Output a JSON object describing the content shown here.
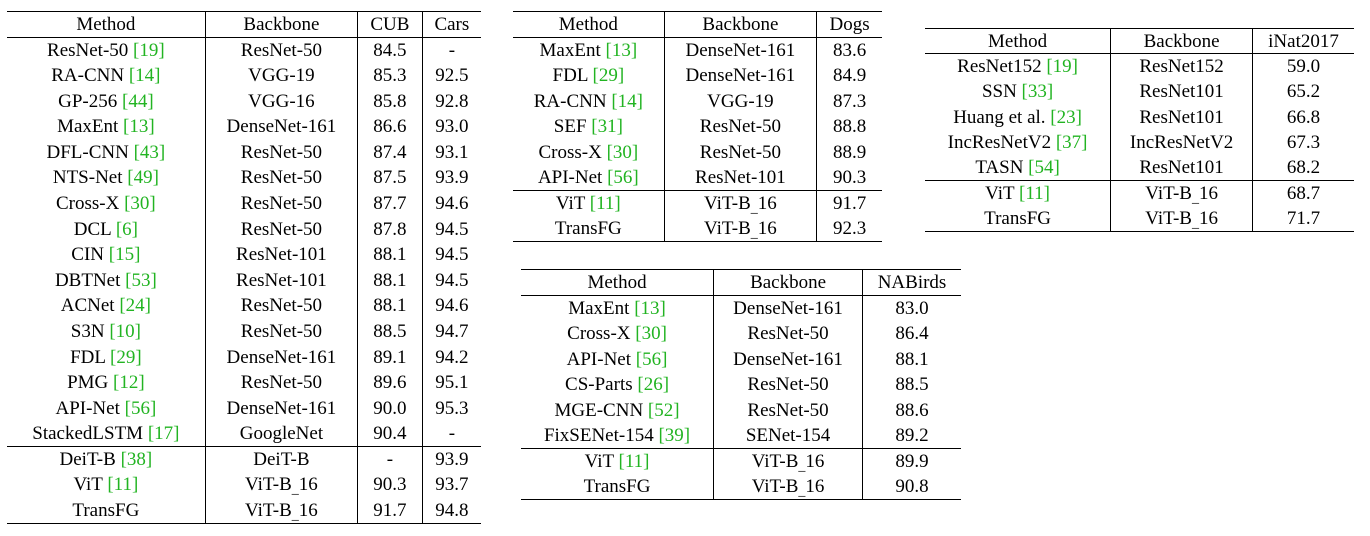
{
  "tables": [
    {
      "id": "cub",
      "headers": [
        "Method",
        "Backbone",
        "CUB",
        "Cars"
      ],
      "rows": [
        {
          "method": "ResNet-50",
          "ref": "19",
          "backbone": "ResNet-50",
          "vals": [
            "84.5",
            "-"
          ],
          "bold": [
            false,
            false
          ]
        },
        {
          "method": "RA-CNN",
          "ref": "14",
          "backbone": "VGG-19",
          "vals": [
            "85.3",
            "92.5"
          ],
          "bold": [
            false,
            false
          ]
        },
        {
          "method": "GP-256",
          "ref": "44",
          "backbone": "VGG-16",
          "vals": [
            "85.8",
            "92.8"
          ],
          "bold": [
            false,
            false
          ]
        },
        {
          "method": "MaxEnt",
          "ref": "13",
          "backbone": "DenseNet-161",
          "vals": [
            "86.6",
            "93.0"
          ],
          "bold": [
            false,
            false
          ]
        },
        {
          "method": "DFL-CNN",
          "ref": "43",
          "backbone": "ResNet-50",
          "vals": [
            "87.4",
            "93.1"
          ],
          "bold": [
            false,
            false
          ]
        },
        {
          "method": "NTS-Net",
          "ref": "49",
          "backbone": "ResNet-50",
          "vals": [
            "87.5",
            "93.9"
          ],
          "bold": [
            false,
            false
          ]
        },
        {
          "method": "Cross-X",
          "ref": "30",
          "backbone": "ResNet-50",
          "vals": [
            "87.7",
            "94.6"
          ],
          "bold": [
            false,
            false
          ]
        },
        {
          "method": "DCL",
          "ref": "6",
          "backbone": "ResNet-50",
          "vals": [
            "87.8",
            "94.5"
          ],
          "bold": [
            false,
            false
          ]
        },
        {
          "method": "CIN",
          "ref": "15",
          "backbone": "ResNet-101",
          "vals": [
            "88.1",
            "94.5"
          ],
          "bold": [
            false,
            false
          ]
        },
        {
          "method": "DBTNet",
          "ref": "53",
          "backbone": "ResNet-101",
          "vals": [
            "88.1",
            "94.5"
          ],
          "bold": [
            false,
            false
          ]
        },
        {
          "method": "ACNet",
          "ref": "24",
          "backbone": "ResNet-50",
          "vals": [
            "88.1",
            "94.6"
          ],
          "bold": [
            false,
            false
          ]
        },
        {
          "method": "S3N",
          "ref": "10",
          "backbone": "ResNet-50",
          "vals": [
            "88.5",
            "94.7"
          ],
          "bold": [
            false,
            false
          ]
        },
        {
          "method": "FDL",
          "ref": "29",
          "backbone": "DenseNet-161",
          "vals": [
            "89.1",
            "94.2"
          ],
          "bold": [
            false,
            false
          ]
        },
        {
          "method": "PMG",
          "ref": "12",
          "backbone": "ResNet-50",
          "vals": [
            "89.6",
            "95.1"
          ],
          "bold": [
            false,
            false
          ]
        },
        {
          "method": "API-Net",
          "ref": "56",
          "backbone": "DenseNet-161",
          "vals": [
            "90.0",
            "95.3"
          ],
          "bold": [
            false,
            true
          ]
        },
        {
          "method": "StackedLSTM",
          "ref": "17",
          "backbone": "GoogleNet",
          "vals": [
            "90.4",
            "-"
          ],
          "bold": [
            false,
            false
          ]
        }
      ],
      "tail": [
        {
          "method": "DeiT-B",
          "ref": "38",
          "backbone": "DeiT-B",
          "vals": [
            "-",
            "93.9"
          ],
          "bold": [
            false,
            false
          ]
        },
        {
          "method": "ViT",
          "ref": "11",
          "backbone": "ViT-B_16",
          "vals": [
            "90.3",
            "93.7"
          ],
          "bold": [
            false,
            false
          ]
        },
        {
          "method": "TransFG",
          "ref": "",
          "backbone": "ViT-B_16",
          "vals": [
            "91.7",
            "94.8"
          ],
          "bold": [
            true,
            false
          ]
        }
      ]
    },
    {
      "id": "dogs",
      "headers": [
        "Method",
        "Backbone",
        "Dogs"
      ],
      "rows": [
        {
          "method": "MaxEnt",
          "ref": "13",
          "backbone": "DenseNet-161",
          "vals": [
            "83.6"
          ],
          "bold": [
            false
          ]
        },
        {
          "method": "FDL",
          "ref": "29",
          "backbone": "DenseNet-161",
          "vals": [
            "84.9"
          ],
          "bold": [
            false
          ]
        },
        {
          "method": "RA-CNN",
          "ref": "14",
          "backbone": "VGG-19",
          "vals": [
            "87.3"
          ],
          "bold": [
            false
          ]
        },
        {
          "method": "SEF",
          "ref": "31",
          "backbone": "ResNet-50",
          "vals": [
            "88.8"
          ],
          "bold": [
            false
          ]
        },
        {
          "method": "Cross-X",
          "ref": "30",
          "backbone": "ResNet-50",
          "vals": [
            "88.9"
          ],
          "bold": [
            false
          ]
        },
        {
          "method": "API-Net",
          "ref": "56",
          "backbone": "ResNet-101",
          "vals": [
            "90.3"
          ],
          "bold": [
            false
          ]
        }
      ],
      "tail": [
        {
          "method": "ViT",
          "ref": "11",
          "backbone": "ViT-B_16",
          "vals": [
            "91.7"
          ],
          "bold": [
            false
          ]
        },
        {
          "method": "TransFG",
          "ref": "",
          "backbone": "ViT-B_16",
          "vals": [
            "92.3"
          ],
          "bold": [
            true
          ]
        }
      ]
    },
    {
      "id": "inat",
      "headers": [
        "Method",
        "Backbone",
        "iNat2017"
      ],
      "rows": [
        {
          "method": "ResNet152",
          "ref": "19",
          "backbone": "ResNet152",
          "vals": [
            "59.0"
          ],
          "bold": [
            false
          ]
        },
        {
          "method": "SSN",
          "ref": "33",
          "backbone": "ResNet101",
          "vals": [
            "65.2"
          ],
          "bold": [
            false
          ]
        },
        {
          "method": "Huang et al.",
          "ref": "23",
          "backbone": "ResNet101",
          "vals": [
            "66.8"
          ],
          "bold": [
            false
          ]
        },
        {
          "method": "IncResNetV2",
          "ref": "37",
          "backbone": "IncResNetV2",
          "vals": [
            "67.3"
          ],
          "bold": [
            false
          ]
        },
        {
          "method": "TASN",
          "ref": "54",
          "backbone": "ResNet101",
          "vals": [
            "68.2"
          ],
          "bold": [
            false
          ]
        }
      ],
      "tail": [
        {
          "method": "ViT",
          "ref": "11",
          "backbone": "ViT-B_16",
          "vals": [
            "68.7"
          ],
          "bold": [
            false
          ]
        },
        {
          "method": "TransFG",
          "ref": "",
          "backbone": "ViT-B_16",
          "vals": [
            "71.7"
          ],
          "bold": [
            true
          ]
        }
      ]
    },
    {
      "id": "nab",
      "headers": [
        "Method",
        "Backbone",
        "NABirds"
      ],
      "rows": [
        {
          "method": "MaxEnt",
          "ref": "13",
          "backbone": "DenseNet-161",
          "vals": [
            "83.0"
          ],
          "bold": [
            false
          ]
        },
        {
          "method": "Cross-X",
          "ref": "30",
          "backbone": "ResNet-50",
          "vals": [
            "86.4"
          ],
          "bold": [
            false
          ]
        },
        {
          "method": "API-Net",
          "ref": "56",
          "backbone": "DenseNet-161",
          "vals": [
            "88.1"
          ],
          "bold": [
            false
          ]
        },
        {
          "method": "CS-Parts",
          "ref": "26",
          "backbone": "ResNet-50",
          "vals": [
            "88.5"
          ],
          "bold": [
            false
          ]
        },
        {
          "method": "MGE-CNN",
          "ref": "52",
          "backbone": "ResNet-50",
          "vals": [
            "88.6"
          ],
          "bold": [
            false
          ]
        },
        {
          "method": "FixSENet-154",
          "ref": "39",
          "backbone": "SENet-154",
          "vals": [
            "89.2"
          ],
          "bold": [
            false
          ]
        }
      ],
      "tail": [
        {
          "method": "ViT",
          "ref": "11",
          "backbone": "ViT-B_16",
          "vals": [
            "89.9"
          ],
          "bold": [
            false
          ]
        },
        {
          "method": "TransFG",
          "ref": "",
          "backbone": "ViT-B_16",
          "vals": [
            "90.8"
          ],
          "bold": [
            true
          ]
        }
      ]
    }
  ]
}
